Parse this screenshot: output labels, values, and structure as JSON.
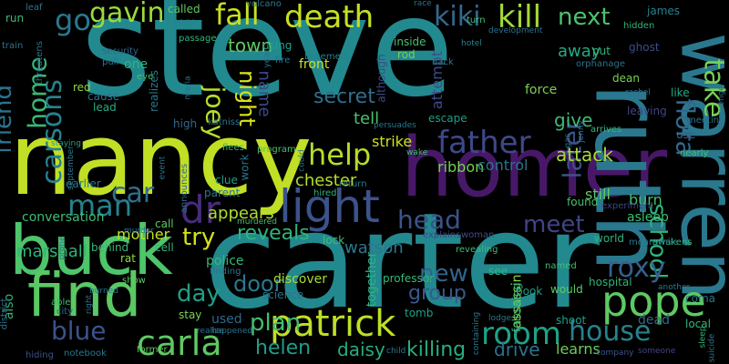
{
  "words": [
    {
      "text": "steve",
      "color": "#22898f",
      "rotate": false
    },
    {
      "text": "carter",
      "color": "#22898f",
      "rotate": false
    },
    {
      "text": "nancy",
      "color": "#c1df24",
      "rotate": false
    },
    {
      "text": "homer",
      "color": "#481868",
      "rotate": false
    },
    {
      "text": "ruth",
      "color": "#2a788e",
      "rotate": true
    },
    {
      "text": "buck",
      "color": "#4ec46b",
      "rotate": false
    },
    {
      "text": "find",
      "color": "#5ac864",
      "rotate": false
    },
    {
      "text": "warren",
      "color": "#2a788e",
      "rotate": true
    },
    {
      "text": "light",
      "color": "#3b528b",
      "rotate": false
    },
    {
      "text": "pope",
      "color": "#5ec962",
      "rotate": false
    },
    {
      "text": "death",
      "color": "#c5e021",
      "rotate": false
    },
    {
      "text": "patrick",
      "color": "#bddf26",
      "rotate": false
    },
    {
      "text": "carla",
      "color": "#5ec962",
      "rotate": false
    },
    {
      "text": "room",
      "color": "#1fa187",
      "rotate": false
    },
    {
      "text": "kill",
      "color": "#a0da39",
      "rotate": false
    },
    {
      "text": "kiki",
      "color": "#31688e",
      "rotate": false
    },
    {
      "text": "fall",
      "color": "#c8e020",
      "rotate": false
    },
    {
      "text": "help",
      "color": "#b5de2b",
      "rotate": false
    },
    {
      "text": "father",
      "color": "#3e4989",
      "rotate": false
    },
    {
      "text": "man",
      "color": "#26828e",
      "rotate": false
    },
    {
      "text": "car",
      "color": "#2e6f8e",
      "rotate": false
    },
    {
      "text": "dr",
      "color": "#462d7c",
      "rotate": false
    },
    {
      "text": "gavin",
      "color": "#9bd93c",
      "rotate": false
    },
    {
      "text": "go",
      "color": "#2a788e",
      "rotate": false
    },
    {
      "text": "next",
      "color": "#4cc26c",
      "rotate": false
    },
    {
      "text": "take",
      "color": "#75d054",
      "rotate": true
    },
    {
      "text": "flora",
      "color": "#31688e",
      "rotate": true
    },
    {
      "text": "school",
      "color": "#2fb47c",
      "rotate": true
    },
    {
      "text": "house",
      "color": "#26828e",
      "rotate": false
    },
    {
      "text": "roxy",
      "color": "#35608d",
      "rotate": false
    },
    {
      "text": "carsons",
      "color": "#26828e",
      "rotate": true
    },
    {
      "text": "home",
      "color": "#38b977",
      "rotate": true
    },
    {
      "text": "friend",
      "color": "#2c728e",
      "rotate": true
    },
    {
      "text": "blue",
      "color": "#3b528b",
      "rotate": false
    },
    {
      "text": "joey",
      "color": "#b5de2b",
      "rotate": true
    },
    {
      "text": "head",
      "color": "#3b528b",
      "rotate": false
    },
    {
      "text": "meet",
      "color": "#414487",
      "rotate": false
    },
    {
      "text": "later",
      "color": "#3b528b",
      "rotate": true
    },
    {
      "text": "day",
      "color": "#1f9e89",
      "rotate": false
    },
    {
      "text": "try",
      "color": "#d2e21b",
      "rotate": false
    },
    {
      "text": "plan",
      "color": "#42be71",
      "rotate": false
    },
    {
      "text": "reveals",
      "color": "#2fb47c",
      "rotate": false
    },
    {
      "text": "new",
      "color": "#33638d",
      "rotate": false
    },
    {
      "text": "group",
      "color": "#38598c",
      "rotate": false
    },
    {
      "text": "door",
      "color": "#2a788e",
      "rotate": false
    },
    {
      "text": "helen",
      "color": "#1f9e89",
      "rotate": false
    },
    {
      "text": "daisy",
      "color": "#26ad81",
      "rotate": false
    },
    {
      "text": "killing",
      "color": "#28ae80",
      "rotate": false
    },
    {
      "text": "night",
      "color": "#d8e219",
      "rotate": true
    },
    {
      "text": "town",
      "color": "#5ec962",
      "rotate": false
    },
    {
      "text": "secret",
      "color": "#2d708e",
      "rotate": false
    },
    {
      "text": "attack",
      "color": "#a8db34",
      "rotate": false
    },
    {
      "text": "away",
      "color": "#25ab82",
      "rotate": false
    },
    {
      "text": "mother",
      "color": "#c8e020",
      "rotate": false
    },
    {
      "text": "marshall",
      "color": "#2fb47c",
      "rotate": false
    },
    {
      "text": "appears",
      "color": "#addc30",
      "rotate": false
    },
    {
      "text": "chester",
      "color": "#b2dd2d",
      "rotate": false
    },
    {
      "text": "watson",
      "color": "#2a788e",
      "rotate": false
    },
    {
      "text": "strike",
      "color": "#cae11f",
      "rotate": false
    },
    {
      "text": "ribbon",
      "color": "#75d054",
      "rotate": false
    },
    {
      "text": "control",
      "color": "#2c728e",
      "rotate": false
    },
    {
      "text": "tell",
      "color": "#4ac16d",
      "rotate": false
    },
    {
      "text": "give",
      "color": "#3dbc74",
      "rotate": false
    },
    {
      "text": "drive",
      "color": "#2c728e",
      "rotate": false
    },
    {
      "text": "learns",
      "color": "#6ccd5a",
      "rotate": false
    },
    {
      "text": "still",
      "color": "#5ec962",
      "rotate": false
    },
    {
      "text": "burn",
      "color": "#44bf70",
      "rotate": false
    },
    {
      "text": "dead",
      "color": "#31688e",
      "rotate": false
    },
    {
      "text": "police",
      "color": "#35b779",
      "rotate": false
    },
    {
      "text": "stay",
      "color": "#7ad151",
      "rotate": false
    },
    {
      "text": "used",
      "color": "#31688e",
      "rotate": false
    },
    {
      "text": "discover",
      "color": "#a8db34",
      "rotate": false
    },
    {
      "text": "science",
      "color": "#2c728e",
      "rotate": false
    },
    {
      "text": "professor",
      "color": "#35b779",
      "rotate": false
    },
    {
      "text": "together",
      "color": "#2fb47c",
      "rotate": true
    },
    {
      "text": "assassin",
      "color": "#86d549",
      "rotate": true
    },
    {
      "text": "would",
      "color": "#5ec962",
      "rotate": false
    },
    {
      "text": "shoot",
      "color": "#1f9e89",
      "rotate": false
    },
    {
      "text": "local",
      "color": "#35b779",
      "rotate": false
    },
    {
      "text": "coma",
      "color": "#2a788e",
      "rotate": false
    },
    {
      "text": "world",
      "color": "#2fb47c",
      "rotate": false
    },
    {
      "text": "asleep",
      "color": "#3dbc74",
      "rotate": false
    },
    {
      "text": "like",
      "color": "#25ab82",
      "rotate": false
    },
    {
      "text": "dean",
      "color": "#7ad151",
      "rotate": false
    },
    {
      "text": "ghost",
      "color": "#3e4c8a",
      "rotate": false
    },
    {
      "text": "james",
      "color": "#26828e",
      "rotate": false
    },
    {
      "text": "name",
      "color": "#3e4989",
      "rotate": true
    },
    {
      "text": "front",
      "color": "#cde11d",
      "rotate": false
    },
    {
      "text": "force",
      "color": "#7ad151",
      "rotate": false
    },
    {
      "text": "attempt",
      "color": "#3e4c8a",
      "rotate": true
    },
    {
      "text": "one",
      "color": "#2fb47c",
      "rotate": false
    },
    {
      "text": "realizes",
      "color": "#2a788e",
      "rotate": true
    },
    {
      "text": "conversation",
      "color": "#3dbc74",
      "rotate": false
    },
    {
      "text": "however",
      "color": "#3b528b",
      "rotate": true
    },
    {
      "text": "also",
      "color": "#2fb47c",
      "rotate": true
    },
    {
      "text": "rat",
      "color": "#8fd744",
      "rotate": false
    },
    {
      "text": "call",
      "color": "#5ec962",
      "rotate": false
    },
    {
      "text": "cell",
      "color": "#2fb47c",
      "rotate": false
    },
    {
      "text": "parent",
      "color": "#2a788e",
      "rotate": false
    },
    {
      "text": "clue",
      "color": "#1fa187",
      "rotate": false
    },
    {
      "text": "finding",
      "color": "#2c728e",
      "rotate": false
    },
    {
      "text": "tomb",
      "color": "#1fa187",
      "rotate": false
    },
    {
      "text": "book",
      "color": "#1f9e89",
      "rotate": false
    },
    {
      "text": "see",
      "color": "#2fb47c",
      "rotate": false
    },
    {
      "text": "lock",
      "color": "#44bf70",
      "rotate": false
    },
    {
      "text": "escape",
      "color": "#1f9e89",
      "rotate": false
    },
    {
      "text": "using",
      "color": "#1fa187",
      "rotate": false
    },
    {
      "text": "rod",
      "color": "#7ad151",
      "rotate": false
    },
    {
      "text": "inside",
      "color": "#44bf70",
      "rotate": false
    },
    {
      "text": "although",
      "color": "#3e4c8a",
      "rotate": true
    },
    {
      "text": "red",
      "color": "#8fd744",
      "rotate": false
    },
    {
      "text": "cause",
      "color": "#2c728e",
      "rotate": false
    },
    {
      "text": "lead",
      "color": "#25ab82",
      "rotate": false
    },
    {
      "text": "high",
      "color": "#31688e",
      "rotate": false
    },
    {
      "text": "earlier",
      "color": "#2a788e",
      "rotate": false
    },
    {
      "text": "behind",
      "color": "#35b779",
      "rotate": false
    },
    {
      "text": "work",
      "color": "#2a788e",
      "rotate": true
    },
    {
      "text": "show",
      "color": "#5ec962",
      "rotate": false
    },
    {
      "text": "notebook",
      "color": "#2a788e",
      "rotate": false
    },
    {
      "text": "former",
      "color": "#5ec962",
      "rotate": false
    },
    {
      "text": "hiding",
      "color": "#3b528b",
      "rotate": false
    },
    {
      "text": "district",
      "color": "#2c728e",
      "rotate": true
    },
    {
      "text": "able",
      "color": "#3dbc74",
      "rotate": false
    },
    {
      "text": "city",
      "color": "#2c728e",
      "rotate": false
    },
    {
      "text": "announces",
      "color": "#31688e",
      "rotate": true
    },
    {
      "text": "katniss",
      "color": "#2c728e",
      "rotate": false
    },
    {
      "text": "program",
      "color": "#4ac16d",
      "rotate": false
    },
    {
      "text": "flees",
      "color": "#3dbc74",
      "rotate": false
    },
    {
      "text": "hired",
      "color": "#2fb47c",
      "rotate": false
    },
    {
      "text": "return",
      "color": "#2a788e",
      "rotate": false
    },
    {
      "text": "murdered",
      "color": "#44bf70",
      "rotate": false
    },
    {
      "text": "explains",
      "color": "#414487",
      "rotate": false
    },
    {
      "text": "woman",
      "color": "#3e4c8a",
      "rotate": false
    },
    {
      "text": "revealing",
      "color": "#3dbc74",
      "rotate": false
    },
    {
      "text": "named",
      "color": "#44bf70",
      "rotate": false
    },
    {
      "text": "hospital",
      "color": "#2fb47c",
      "rotate": false
    },
    {
      "text": "following",
      "color": "#35b779",
      "rotate": true
    },
    {
      "text": "awakens",
      "color": "#35b779",
      "rotate": false
    },
    {
      "text": "experiment",
      "color": "#414487",
      "rotate": false
    },
    {
      "text": "meanwhile",
      "color": "#2a788e",
      "rotate": false
    },
    {
      "text": "found",
      "color": "#44bf70",
      "rotate": false
    },
    {
      "text": "leaving",
      "color": "#414487",
      "rotate": false
    },
    {
      "text": "meeting",
      "color": "#2c728e",
      "rotate": false
    },
    {
      "text": "use",
      "color": "#31688e",
      "rotate": false
    },
    {
      "text": "nearly",
      "color": "#44bf70",
      "rotate": false
    },
    {
      "text": "arrives",
      "color": "#35b779",
      "rotate": false
    },
    {
      "text": "put",
      "color": "#2fb47c",
      "rotate": false
    },
    {
      "text": "orphanage",
      "color": "#2c728e",
      "rotate": false
    },
    {
      "text": "hidden",
      "color": "#2fb47c",
      "rotate": false
    },
    {
      "text": "development",
      "color": "#2c728e",
      "rotate": false
    },
    {
      "text": "turn",
      "color": "#44bf70",
      "rotate": false
    },
    {
      "text": "hotel",
      "color": "#26828e",
      "rotate": false
    },
    {
      "text": "race",
      "color": "#2c728e",
      "rotate": false
    },
    {
      "text": "back",
      "color": "#2a788e",
      "rotate": false
    },
    {
      "text": "basement",
      "color": "#26828e",
      "rotate": false
    },
    {
      "text": "fire",
      "color": "#2c728e",
      "rotate": false
    },
    {
      "text": "volcano",
      "color": "#2a788e",
      "rotate": false
    },
    {
      "text": "called",
      "color": "#5ec962",
      "rotate": false
    },
    {
      "text": "page",
      "color": "#26828e",
      "rotate": false
    },
    {
      "text": "passage",
      "color": "#2fb47c",
      "rotate": false
    },
    {
      "text": "security",
      "color": "#31688e",
      "rotate": false
    },
    {
      "text": "leaf",
      "color": "#2c728e",
      "rotate": false
    },
    {
      "text": "run",
      "color": "#3dbc74",
      "rotate": false
    },
    {
      "text": "train",
      "color": "#2c728e",
      "rotate": false
    },
    {
      "text": "threatens",
      "color": "#2c728e",
      "rotate": true
    },
    {
      "text": "pull",
      "color": "#2a788e",
      "rotate": false
    },
    {
      "text": "eye",
      "color": "#44bf70",
      "rotate": false
    },
    {
      "text": "wake",
      "color": "#44bf70",
      "rotate": false
    },
    {
      "text": "persuades",
      "color": "#2a788e",
      "rotate": false
    },
    {
      "text": "staying",
      "color": "#1fa187",
      "rotate": false
    },
    {
      "text": "september",
      "color": "#2a788e",
      "rotate": true
    },
    {
      "text": "event",
      "color": "#2c728e",
      "rotate": true
    },
    {
      "text": "maria",
      "color": "#2c728e",
      "rotate": true
    },
    {
      "text": "could",
      "color": "#2c728e",
      "rotate": true
    },
    {
      "text": "gas",
      "color": "#2c728e",
      "rotate": true
    },
    {
      "text": "jenny",
      "color": "#2c728e",
      "rotate": true
    },
    {
      "text": "rachel",
      "color": "#2c728e",
      "rotate": false
    },
    {
      "text": "revenge",
      "color": "#2c728e",
      "rotate": true
    },
    {
      "text": "sleep",
      "color": "#35b779",
      "rotate": true
    },
    {
      "text": "suicide",
      "color": "#2a788e",
      "rotate": true
    },
    {
      "text": "another",
      "color": "#2a788e",
      "rotate": false
    },
    {
      "text": "someone",
      "color": "#414487",
      "rotate": false
    },
    {
      "text": "company",
      "color": "#3b528b",
      "rotate": false
    },
    {
      "text": "containing",
      "color": "#2a788e",
      "rotate": true
    },
    {
      "text": "child",
      "color": "#2a788e",
      "rotate": false
    },
    {
      "text": "lodge",
      "color": "#2a788e",
      "rotate": false
    },
    {
      "text": "burned",
      "color": "#2c728e",
      "rotate": false
    },
    {
      "text": "prone",
      "color": "#2c728e",
      "rotate": true
    },
    {
      "text": "murder",
      "color": "#2c728e",
      "rotate": false
    },
    {
      "text": "right",
      "color": "#2c728e",
      "rotate": true
    },
    {
      "text": "happened",
      "color": "#2c728e",
      "rotate": false
    },
    {
      "text": "year",
      "color": "#2c728e",
      "rotate": true
    },
    {
      "text": "realize",
      "color": "#2c728e",
      "rotate": false
    }
  ]
}
